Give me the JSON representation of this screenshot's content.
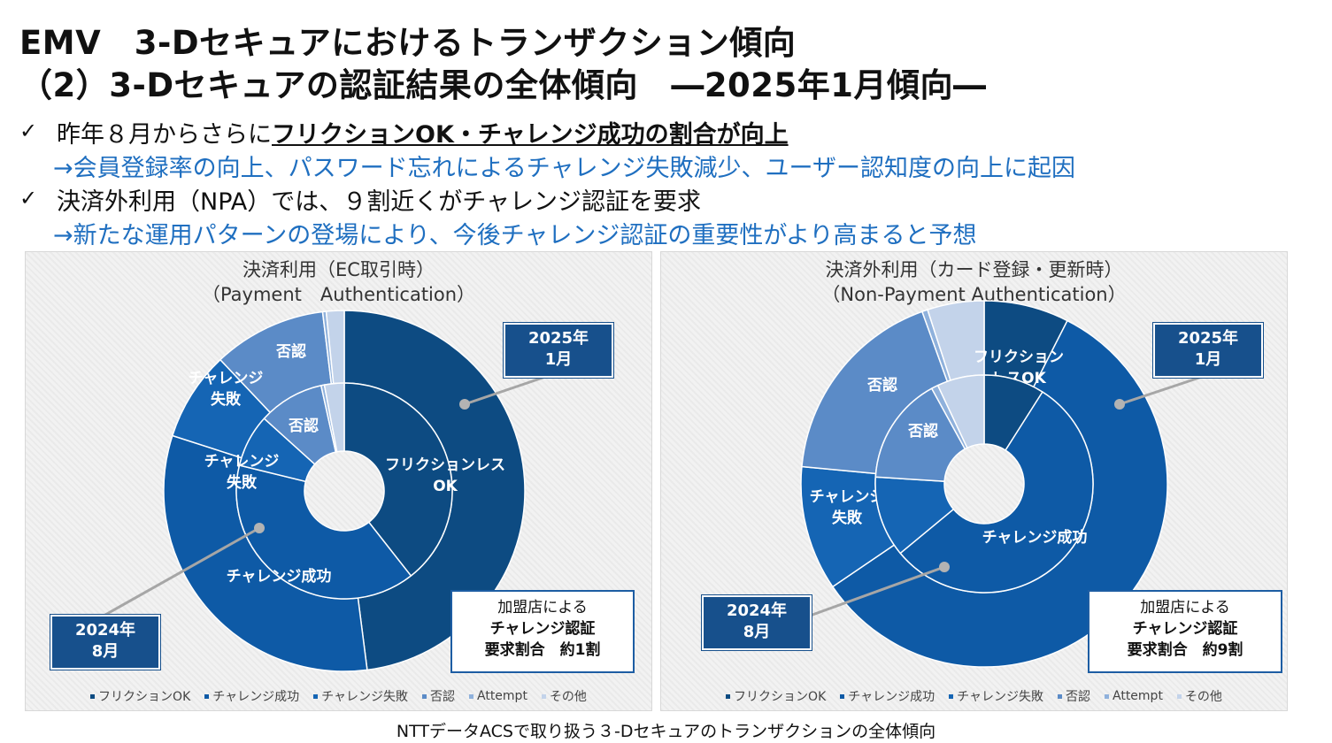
{
  "title_line1": "EMV　3-Dセキュアにおけるトランザクション傾向",
  "title_line2": "（2）3-Dセキュアの認証結果の全体傾向　―2025年1月傾向―",
  "bullets": [
    {
      "check": "✓",
      "pre": "昨年８月からさらに",
      "emph": "フリクションOK・チャレンジ成功の割合が向上",
      "sub": "→会員登録率の向上、パスワード忘れによるチャレンジ失敗減少、ユーザー認知度の向上に起因"
    },
    {
      "check": "✓",
      "pre": "決済外利用（NPA）では、９割近くがチャレンジ認証を要求",
      "emph": "",
      "sub": "→新たな運用パターンの登場により、今後チャレンジ認証の重要性がより高まると予想"
    }
  ],
  "footer": "NTTデータACSで取り扱う３-Dセキュアのトランザクションの全体傾向",
  "colors": {
    "frictionless": "#0d4b82",
    "challenge_success": "#0e5aa6",
    "challenge_fail": "#1565b4",
    "denied": "#5b8bc7",
    "attempt": "#8fb1dc",
    "other": "#c3d3ea"
  },
  "legend": [
    "フリクションOK",
    "チャレンジ成功",
    "チャレンジ失敗",
    "否認",
    "Attempt",
    "その他"
  ],
  "chart_data": [
    {
      "type": "pie",
      "title": "決済利用（EC取引時）",
      "subtitle": "（Payment　Authentication）",
      "categories": [
        "フリクションOK",
        "チャレンジ成功",
        "チャレンジ失敗",
        "否認",
        "Attempt",
        "その他"
      ],
      "series": [
        {
          "name": "2025年1月",
          "ring": "outer",
          "values": [
            45,
            30,
            7.5,
            9.5,
            0.3,
            1.5
          ],
          "labels": [
            "",
            "",
            "チャレンジ\n失敗",
            "否認",
            "",
            ""
          ]
        },
        {
          "name": "2024年8月",
          "ring": "inner",
          "values": [
            40,
            40,
            8,
            10,
            0.5,
            3
          ],
          "labels": [
            "フリクションレス\nOK",
            "チャレンジ成功",
            "チャレンジ\n失敗",
            "否認",
            "",
            ""
          ]
        }
      ],
      "callouts": {
        "outer": "2025年\n1月",
        "inner": "2024年\n8月",
        "note": "加盟店による\nチャレンジ認証\n要求割合　約1割"
      }
    },
    {
      "type": "pie",
      "title": "決済外利用（カード登録・更新時）",
      "subtitle": "（Non-Payment Authentication）",
      "categories": [
        "フリクションOK",
        "チャレンジ成功",
        "チャレンジ失敗",
        "否認",
        "Attempt",
        "その他"
      ],
      "series": [
        {
          "name": "2025年1月",
          "ring": "outer",
          "values": [
            7.5,
            58,
            11,
            18,
            0.5,
            5
          ],
          "labels": [
            "フリクション\nレスOK",
            "",
            "チャレンジ\n失敗",
            "否認",
            "",
            ""
          ]
        },
        {
          "name": "2024年8月",
          "ring": "inner",
          "values": [
            9,
            55,
            12,
            16,
            1,
            7
          ],
          "labels": [
            "",
            "チャレンジ成功",
            "",
            "否認",
            "",
            ""
          ]
        }
      ],
      "callouts": {
        "outer": "2025年\n1月",
        "inner": "2024年\n8月",
        "note": "加盟店による\nチャレンジ認証\n要求割合　約9割"
      }
    }
  ]
}
